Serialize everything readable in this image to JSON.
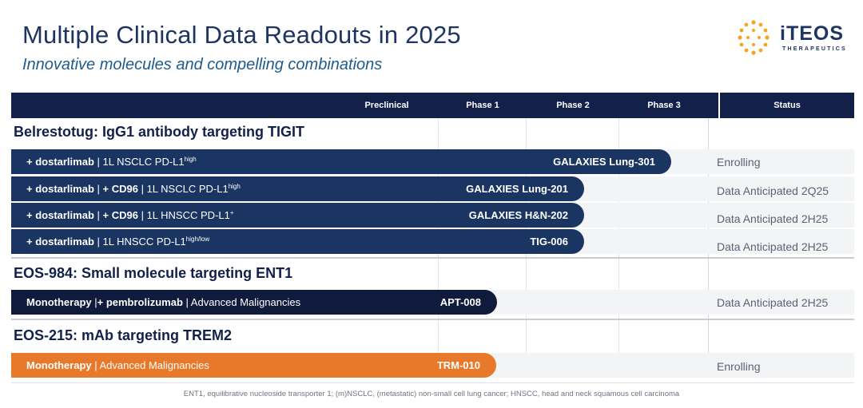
{
  "header": {
    "title": "Multiple Clinical Data Readouts in 2025",
    "subtitle": "Innovative molecules and compelling combinations"
  },
  "logo": {
    "name": "iTEOS",
    "tagline": "THERAPEUTICS"
  },
  "table_header": {
    "preclinical": "Preclinical",
    "phase1": "Phase 1",
    "phase2": "Phase 2",
    "phase3": "Phase 3",
    "status": "Status"
  },
  "sections": [
    {
      "title": "Belrestotug: IgG1 antibody targeting TIGIT",
      "rows": [
        {
          "bold": "+ dostarlimab",
          "sep1": " | ",
          "bold2": "",
          "sep2": "",
          "rest": "1L NSCLC PD-L1",
          "sup": "high",
          "trial": "GALAXIES Lung-301",
          "status": "Enrolling",
          "phase_progress": 3.6
        },
        {
          "bold": "+ dostarlimab",
          "sep1": " | ",
          "bold2": "+ CD96",
          "sep2": " | ",
          "rest": "1L NSCLC PD-L1",
          "sup": "high",
          "trial": "GALAXIES Lung-201",
          "status": "Data Anticipated 2Q25",
          "phase_progress": 2.6
        },
        {
          "bold": "+ dostarlimab",
          "sep1": " | ",
          "bold2": "+ CD96",
          "sep2": " | ",
          "rest": "1L HNSCC PD-L1",
          "sup": "+",
          "trial": "GALAXIES H&N-202",
          "status": "Data Anticipated 2H25",
          "phase_progress": 2.6
        },
        {
          "bold": "+ dostarlimab",
          "sep1": " | ",
          "bold2": "",
          "sep2": "",
          "rest": "1L HNSCC PD-L1",
          "sup": "high/low",
          "trial": "TIG-006",
          "status": "Data Anticipated 2H25",
          "phase_progress": 2.6
        }
      ]
    },
    {
      "title": "EOS-984: Small molecule targeting ENT1",
      "rows": [
        {
          "bold": "Monotherapy",
          "sep1": " |",
          "bold2": "+ pembrolizumab",
          "sep2": " | ",
          "rest": "Advanced Malignancies",
          "sup": "",
          "trial": "APT-008",
          "status": "Data Anticipated 2H25",
          "phase_progress": 1.6
        }
      ]
    },
    {
      "title": "EOS-215: mAb targeting TREM2",
      "rows": [
        {
          "bold": "Monotherapy",
          "sep1": " | ",
          "bold2": "",
          "sep2": "",
          "rest": "Advanced Malignancies",
          "sup": "",
          "trial": "TRM-010",
          "status": "Enrolling",
          "phase_progress": 1.6
        }
      ]
    }
  ],
  "footnote": "ENT1, equilibrative nucleoside transporter 1; (m)NSCLC, (metastatic) non-small cell lung cancer; HNSCC, head and neck squamous cell carcinoma",
  "colors": {
    "navy": "#1b3563",
    "dark_navy": "#0f1a3c",
    "orange": "#e9792a",
    "logo_dot": "#f2a623"
  }
}
